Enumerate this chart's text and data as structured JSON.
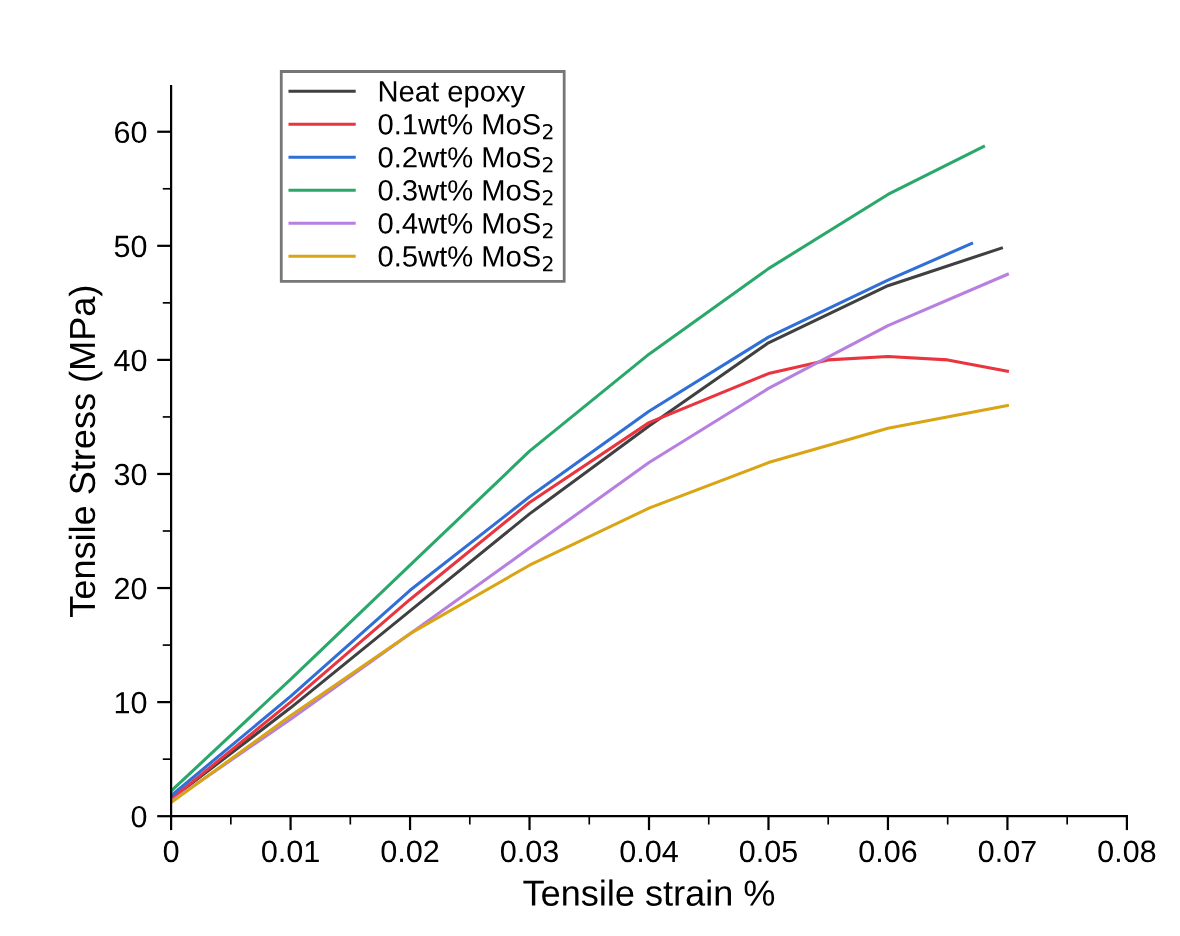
{
  "chart_data": {
    "type": "line",
    "xlabel": "Tensile strain %",
    "ylabel": "Tensile Stress (MPa)",
    "xlim": [
      0,
      0.08
    ],
    "ylim": [
      0,
      64
    ],
    "xticks": [
      0,
      0.01,
      0.02,
      0.03,
      0.04,
      0.05,
      0.06,
      0.07,
      0.08
    ],
    "yticks": [
      0,
      10,
      20,
      30,
      40,
      50,
      60
    ],
    "grid": false,
    "legend": "top left",
    "marker": "none",
    "line_style": "solid",
    "series": [
      {
        "name": "Neat epoxy",
        "color": "#404040",
        "x": [
          0,
          0.01,
          0.02,
          0.03,
          0.04,
          0.05,
          0.06,
          0.0695
        ],
        "values": [
          1.5,
          9.5,
          18,
          26.5,
          34.2,
          41.5,
          46.5,
          49.8
        ]
      },
      {
        "name": "0.1wt% MoS$_{2}$",
        "color": "#e8353f",
        "x": [
          0,
          0.01,
          0.02,
          0.03,
          0.04,
          0.05,
          0.055,
          0.06,
          0.065,
          0.07
        ],
        "values": [
          1.5,
          10,
          19,
          27.5,
          34.5,
          38.8,
          40,
          40.3,
          40,
          39
        ]
      },
      {
        "name": "0.2wt% MoS$_{2}$",
        "color": "#2f6fd6",
        "x": [
          0,
          0.01,
          0.02,
          0.03,
          0.04,
          0.05,
          0.06,
          0.067
        ],
        "values": [
          1.8,
          10.5,
          19.8,
          28,
          35.5,
          42,
          47,
          50.2
        ]
      },
      {
        "name": "0.3wt% MoS$_{2}$",
        "color": "#2aa86a",
        "x": [
          0,
          0.01,
          0.02,
          0.03,
          0.04,
          0.05,
          0.06,
          0.068
        ],
        "values": [
          2.2,
          12,
          22,
          32,
          40.5,
          48,
          54.5,
          58.7
        ]
      },
      {
        "name": "0.4wt% MoS$_{2}$",
        "color": "#b77fe0",
        "x": [
          0,
          0.01,
          0.02,
          0.03,
          0.04,
          0.05,
          0.06,
          0.07
        ],
        "values": [
          1.3,
          8.5,
          16,
          23.5,
          31,
          37.5,
          43,
          47.5
        ]
      },
      {
        "name": "0.5wt% MoS$_{2}$",
        "color": "#d9a514",
        "x": [
          0,
          0.01,
          0.02,
          0.03,
          0.04,
          0.05,
          0.06,
          0.07
        ],
        "values": [
          1.2,
          8.8,
          16,
          22,
          27,
          31,
          34,
          36
        ]
      }
    ]
  }
}
